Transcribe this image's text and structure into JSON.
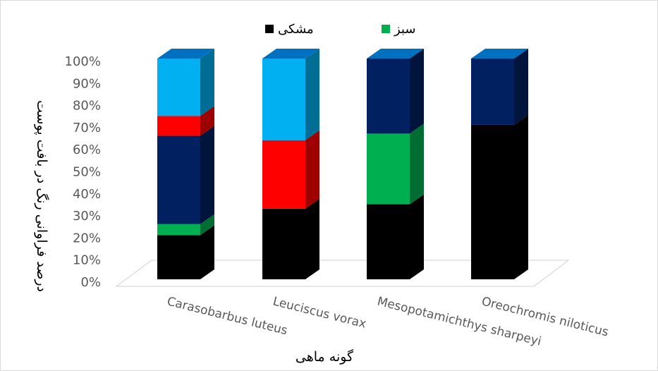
{
  "chart_data": {
    "type": "bar",
    "stacked": true,
    "three_d": true,
    "categories": [
      "Carasobarbus luteus",
      "Leuciscus vorax",
      "Mesopotamichthys sharpeyi",
      "Oreochromis niloticus"
    ],
    "series": [
      {
        "name": "مشکی",
        "color": "#000000",
        "values": [
          20,
          32,
          34,
          70
        ]
      },
      {
        "name": "سبز",
        "color": "#00b050",
        "values": [
          5,
          0,
          32,
          0
        ]
      },
      {
        "name": "",
        "color": "#002060",
        "values": [
          40,
          0,
          34,
          30
        ]
      },
      {
        "name": "",
        "color": "#ff0000",
        "values": [
          9,
          31,
          0,
          0
        ]
      },
      {
        "name": "",
        "color": "#00b0f0",
        "values": [
          26,
          37,
          0,
          0
        ]
      }
    ],
    "legend": {
      "position": "top",
      "entries": [
        "مشکی",
        "سبز"
      ]
    },
    "xlabel": "گونه ماهی",
    "ylabel": "درصد فراوانی رنگ در بافت پوست",
    "ylim": [
      0,
      100
    ],
    "yticks": [
      "0%",
      "10%",
      "20%",
      "30%",
      "40%",
      "50%",
      "60%",
      "70%",
      "80%",
      "90%",
      "100%"
    ],
    "grid": false
  }
}
